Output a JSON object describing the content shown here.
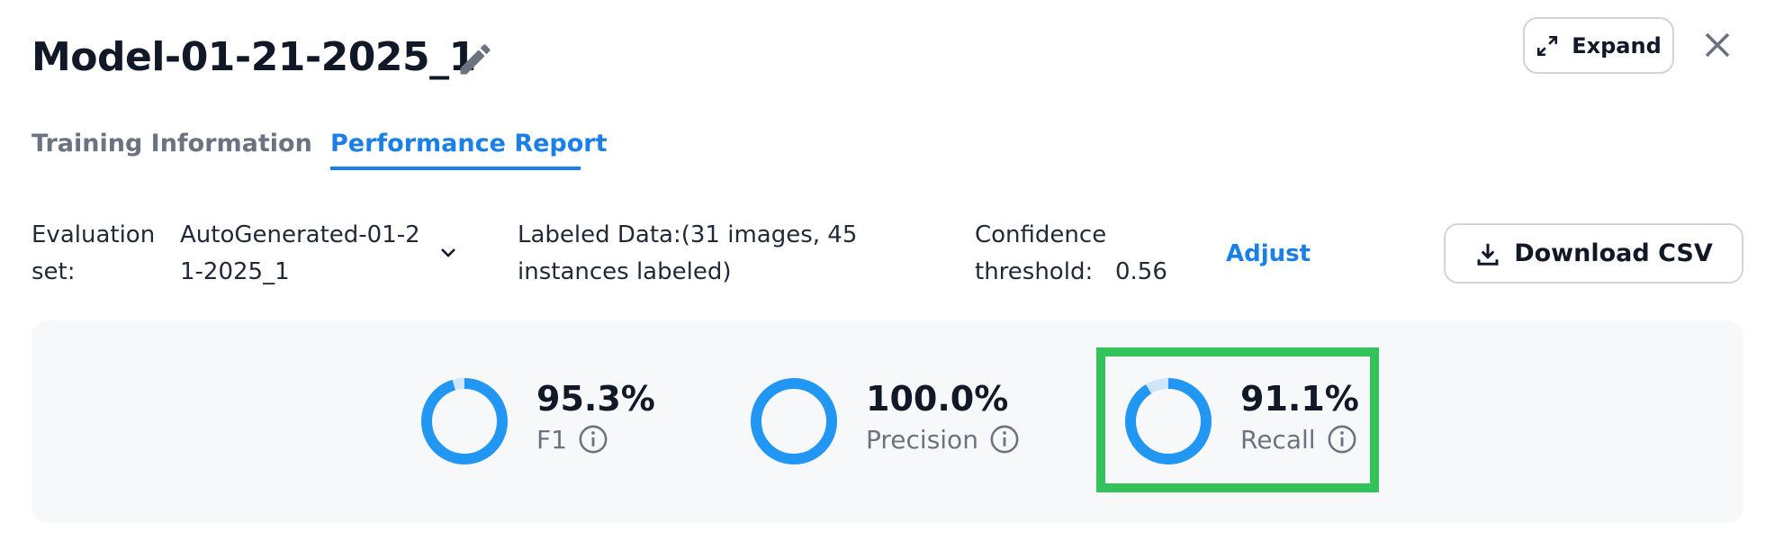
{
  "header": {
    "title": "Model-01-21-2025_1",
    "expand": "Expand"
  },
  "tabs": [
    "Training Information",
    "Performance Report"
  ],
  "filters": {
    "evaluation_label": "Evaluation set:",
    "evaluation_set": "AutoGenerated-01-21-2025_1",
    "labeled_data": "Labeled Data:(31 images, 45 instances labeled)",
    "confidence_label": "Confidence threshold:",
    "confidence_value": "0.56",
    "adjust": "Adjust",
    "download": "Download CSV"
  },
  "metrics": [
    {
      "name": "F1",
      "value": 95.3,
      "label": "95.3%",
      "color": "#2196f3"
    },
    {
      "name": "Precision",
      "value": 100.0,
      "label": "100.0%",
      "color": "#2196f3"
    },
    {
      "name": "Recall",
      "value": 91.1,
      "label": "91.1%",
      "color": "#2196f3"
    }
  ],
  "highlighted_metric": 2
}
